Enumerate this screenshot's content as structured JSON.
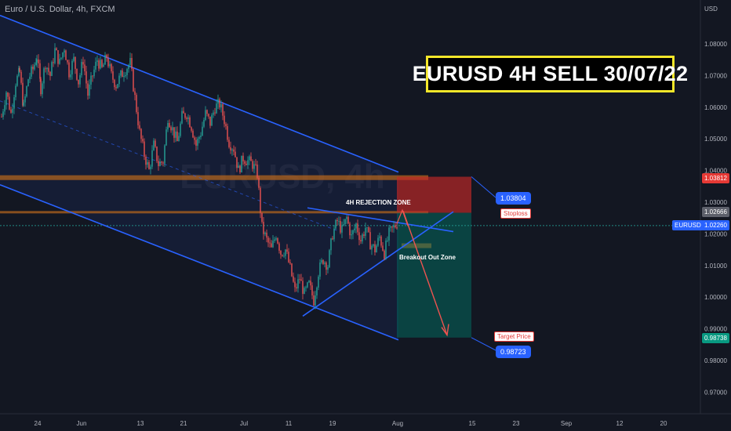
{
  "symbol_line": "Euro / U.S. Dollar, 4h, FXCM",
  "banner_title": "EURUSD 4H SELL 30/07/22",
  "watermark": "EURUSD, 4h",
  "annotations": {
    "rejection_zone": "4H REJECTION ZONE",
    "breakout_zone": "Breakout Out Zone",
    "stoploss": "Stoploss",
    "target_price": "Target Price"
  },
  "callouts": {
    "stop_value": "1.03804",
    "target_value": "0.98723"
  },
  "price_tags": {
    "symbol": "EURUSD",
    "current": "1.02260",
    "red": "1.03812",
    "gray": "1.02666",
    "green": "0.98738"
  },
  "colors": {
    "background": "#131722",
    "candle_up": "#26a69a",
    "candle_down": "#ef5350",
    "channel": "#2962ff",
    "zone": "#b5651d",
    "stop_area": "#c62828",
    "target_area": "#00796b",
    "arrow": "#ef5350",
    "title_border": "#f5e72a"
  },
  "chart_data": {
    "type": "candlestick",
    "y_axis_unit": "USD",
    "ylim": [
      0.965,
      1.092
    ],
    "y_ticks": [
      {
        "value": 1.08,
        "label": "1.08000"
      },
      {
        "value": 1.07,
        "label": "1.07000"
      },
      {
        "value": 1.06,
        "label": "1.06000"
      },
      {
        "value": 1.05,
        "label": "1.05000"
      },
      {
        "value": 1.04,
        "label": "1.04000"
      },
      {
        "value": 1.03,
        "label": "1.03000"
      },
      {
        "value": 1.02,
        "label": "1.02000"
      },
      {
        "value": 1.01,
        "label": "1.01000"
      },
      {
        "value": 1.0,
        "label": "1.00000"
      },
      {
        "value": 0.99,
        "label": "0.99000"
      },
      {
        "value": 0.98,
        "label": "0.98000"
      },
      {
        "value": 0.97,
        "label": "0.97000"
      }
    ],
    "x_ticks": [
      "24",
      "Jun",
      "13",
      "21",
      "Jul",
      "11",
      "19",
      "Aug",
      "15",
      "23",
      "Sep",
      "12",
      "20"
    ],
    "price_path": [
      [
        0,
        1.057
      ],
      [
        6,
        1.065
      ],
      [
        12,
        1.058
      ],
      [
        18,
        1.068
      ],
      [
        23,
        1.071
      ],
      [
        28,
        1.06
      ],
      [
        34,
        1.069
      ],
      [
        40,
        1.072
      ],
      [
        45,
        1.076
      ],
      [
        50,
        1.066
      ],
      [
        56,
        1.074
      ],
      [
        62,
        1.07
      ],
      [
        68,
        1.078
      ],
      [
        74,
        1.074
      ],
      [
        80,
        1.079
      ],
      [
        86,
        1.071
      ],
      [
        92,
        1.075
      ],
      [
        98,
        1.068
      ],
      [
        104,
        1.075
      ],
      [
        110,
        1.064
      ],
      [
        116,
        1.07
      ],
      [
        122,
        1.075
      ],
      [
        128,
        1.072
      ],
      [
        134,
        1.076
      ],
      [
        140,
        1.07
      ],
      [
        146,
        1.067
      ],
      [
        152,
        1.07
      ],
      [
        158,
        1.072
      ],
      [
        164,
        1.074
      ],
      [
        170,
        1.063
      ],
      [
        176,
        1.052
      ],
      [
        182,
        1.045
      ],
      [
        188,
        1.04
      ],
      [
        194,
        1.048
      ],
      [
        200,
        1.042
      ],
      [
        206,
        1.043
      ],
      [
        212,
        1.057
      ],
      [
        218,
        1.053
      ],
      [
        224,
        1.049
      ],
      [
        230,
        1.057
      ],
      [
        236,
        1.058
      ],
      [
        242,
        1.054
      ],
      [
        248,
        1.048
      ],
      [
        254,
        1.052
      ],
      [
        260,
        1.058
      ],
      [
        266,
        1.055
      ],
      [
        272,
        1.06
      ],
      [
        278,
        1.061
      ],
      [
        284,
        1.056
      ],
      [
        290,
        1.049
      ],
      [
        296,
        1.047
      ],
      [
        302,
        1.04
      ],
      [
        308,
        1.044
      ],
      [
        314,
        1.043
      ],
      [
        320,
        1.042
      ],
      [
        326,
        1.039
      ],
      [
        332,
        1.022
      ],
      [
        338,
        1.018
      ],
      [
        344,
        1.015
      ],
      [
        350,
        1.02
      ],
      [
        356,
        1.014
      ],
      [
        362,
        1.015
      ],
      [
        368,
        1.009
      ],
      [
        374,
        1.002
      ],
      [
        380,
        1.006
      ],
      [
        386,
        1.001
      ],
      [
        392,
        1.004
      ],
      [
        398,
        0.999
      ],
      [
        404,
        1.008
      ],
      [
        410,
        1.012
      ],
      [
        416,
        1.01
      ],
      [
        422,
        1.02
      ],
      [
        428,
        1.024
      ],
      [
        434,
        1.021
      ],
      [
        440,
        1.025
      ],
      [
        446,
        1.019
      ],
      [
        452,
        1.023
      ],
      [
        458,
        1.018
      ],
      [
        464,
        1.022
      ],
      [
        470,
        1.017
      ],
      [
        476,
        1.015
      ],
      [
        482,
        1.019
      ],
      [
        488,
        1.014
      ],
      [
        494,
        1.02
      ],
      [
        500,
        1.022
      ],
      [
        506,
        1.024
      ]
    ],
    "levels": {
      "stop_top": 1.03804,
      "entry": 1.02666,
      "current": 1.0226,
      "target": 0.98723,
      "red_tag": 1.03812,
      "green_tag": 0.98738
    },
    "zones": [
      {
        "from": 1.037,
        "to": 1.0385
      },
      {
        "from": 1.0265,
        "to": 1.0272
      },
      {
        "from": 1.0155,
        "to": 1.017
      }
    ],
    "channel_lines": [
      {
        "x1": 0,
        "y1": 1.089,
        "x2": 508,
        "y2": 1.0395
      },
      {
        "x1": 0,
        "y1": 1.0355,
        "x2": 508,
        "y2": 0.9865
      },
      {
        "x1": 392,
        "y1": 1.0282,
        "x2": 578,
        "y2": 1.0207
      },
      {
        "x1": 386,
        "y1": 0.994,
        "x2": 578,
        "y2": 1.027
      },
      {
        "x1": 0,
        "y1": 1.062,
        "x2": 430,
        "y2": 1.021,
        "dashed": true
      }
    ],
    "trade": {
      "x_from": 506,
      "x_to": 601,
      "entry": 1.02666,
      "stop": 1.03804,
      "target": 0.98723
    }
  }
}
